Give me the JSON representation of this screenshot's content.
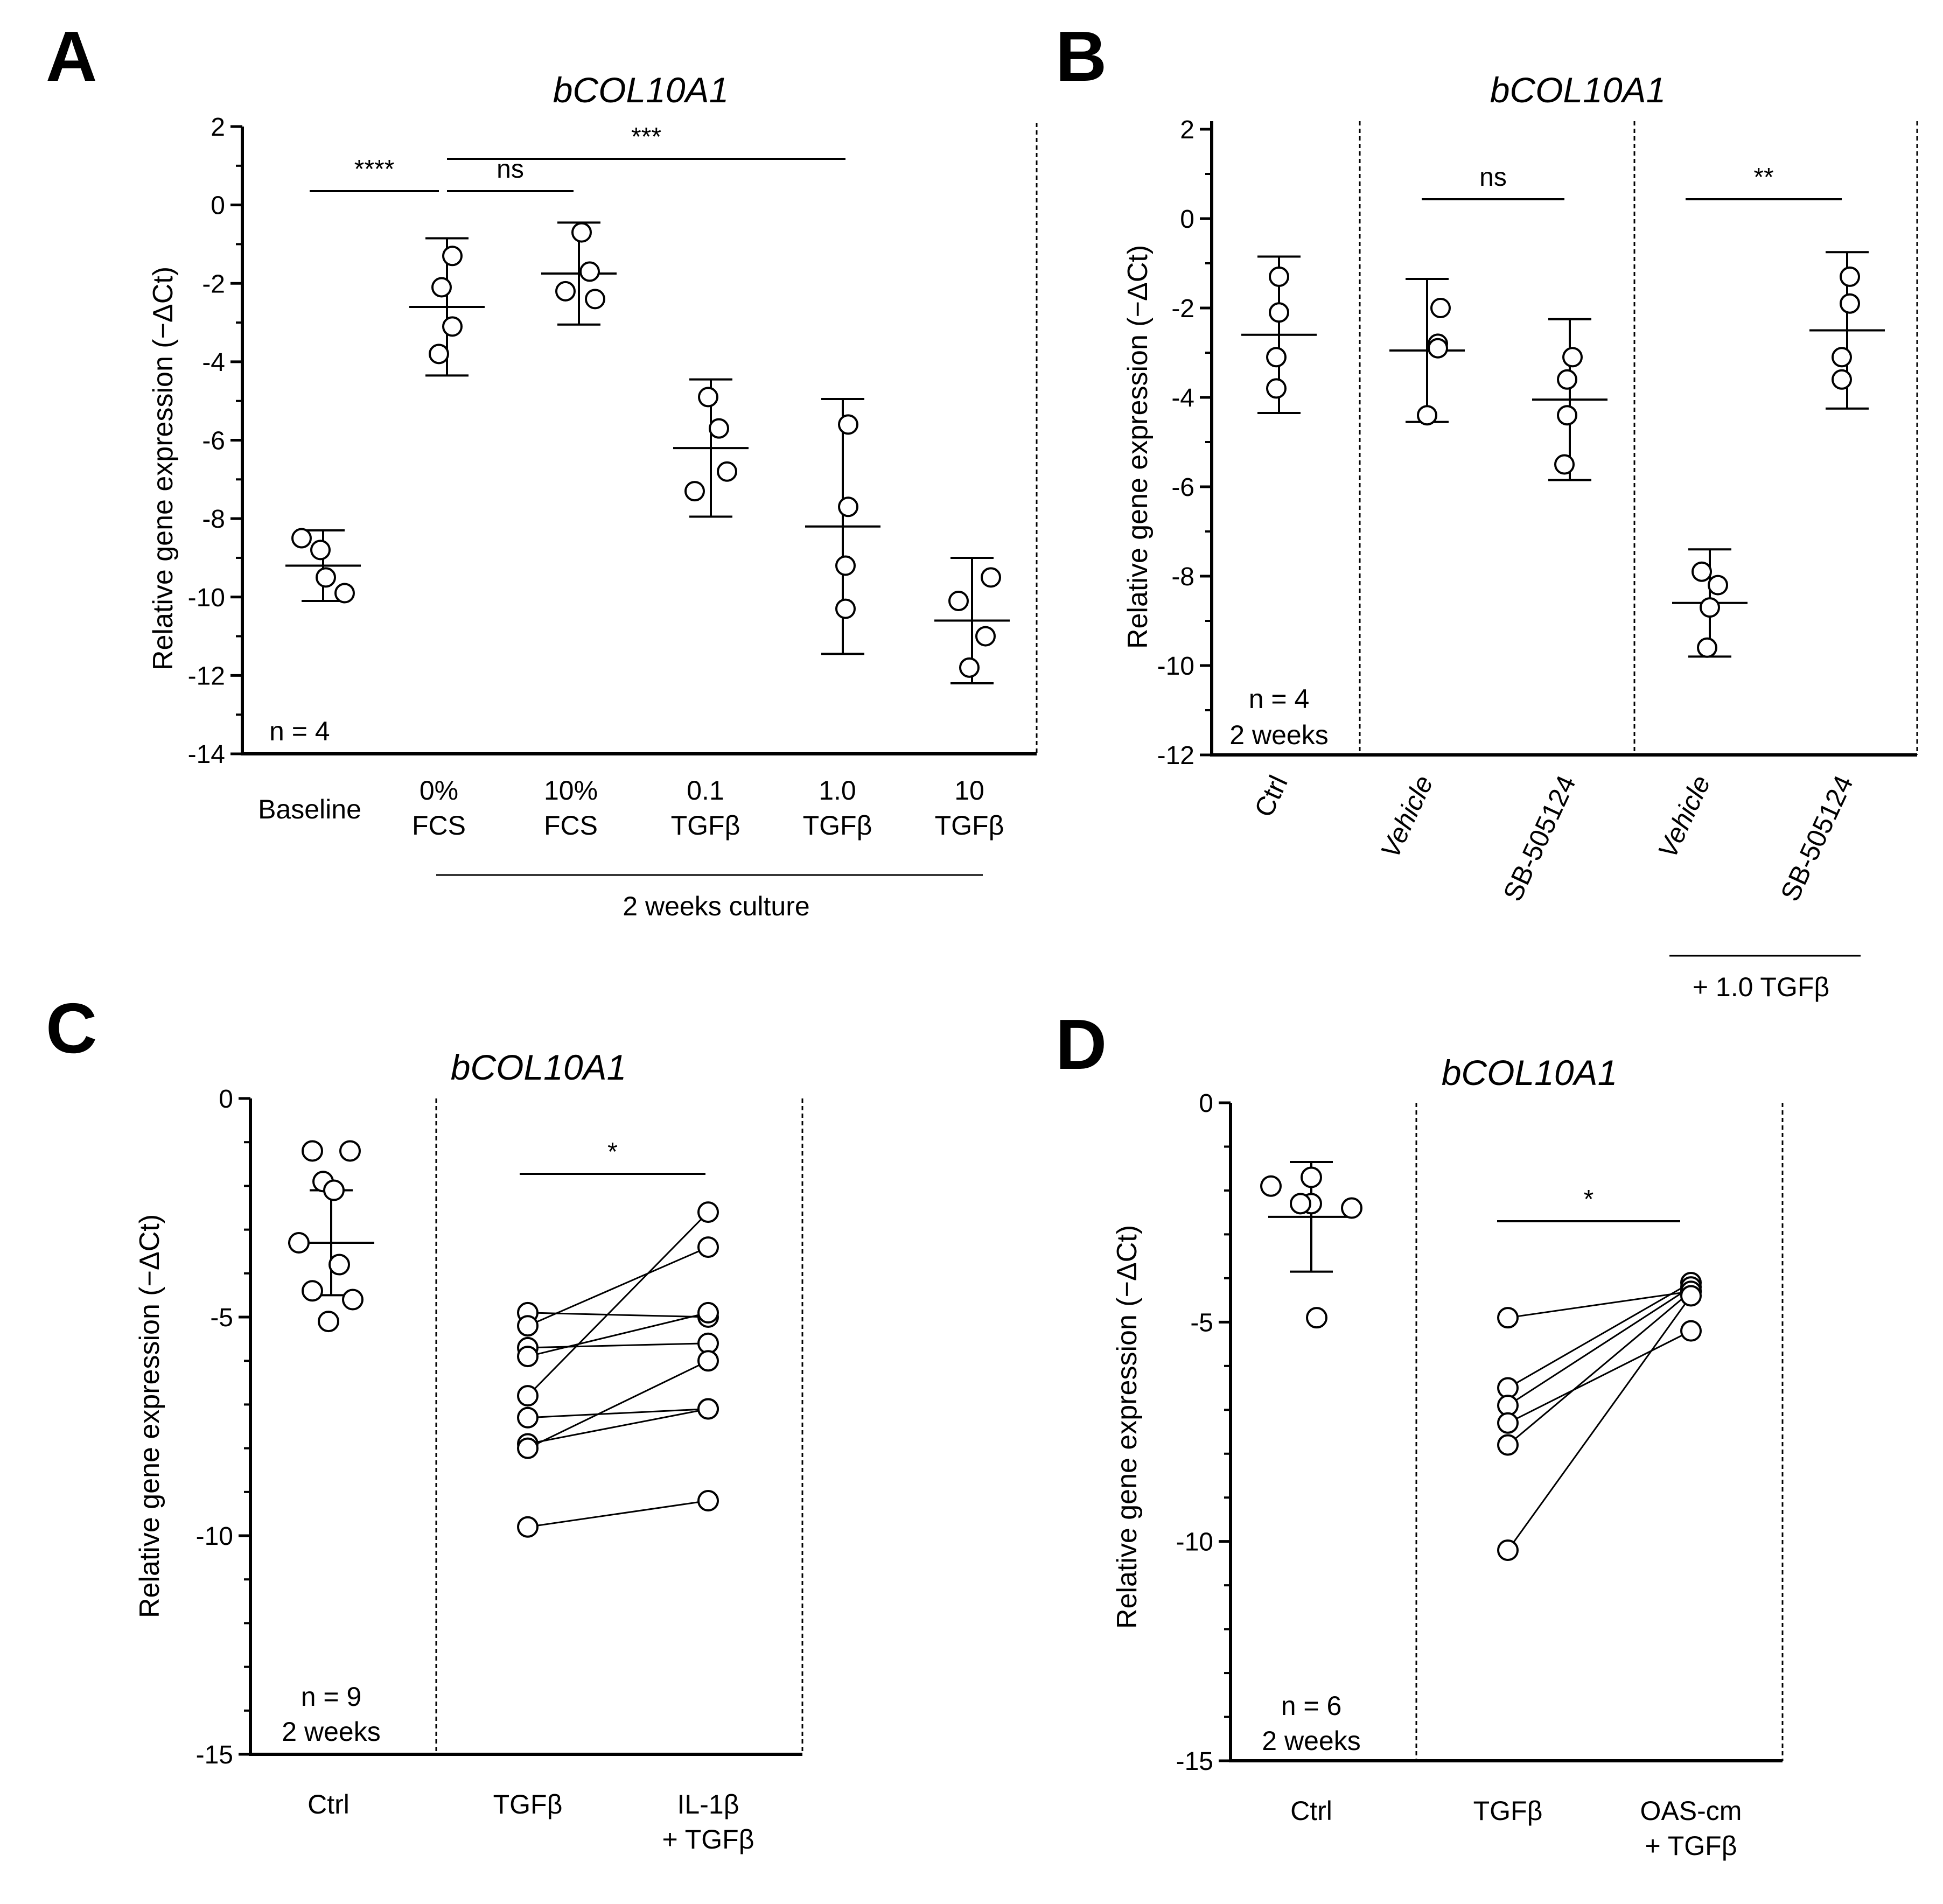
{
  "figure": {
    "panels": [
      {
        "id": "A",
        "letter": "A",
        "title": "bCOL10A1",
        "ylabel": "Relative gene expression (−ΔCt)",
        "yticks": [
          "2",
          "0",
          "-2",
          "-4",
          "-6",
          "-8",
          "-10",
          "-12",
          "-14"
        ],
        "notes": [
          "n = 4"
        ],
        "categories": [
          {
            "label": [
              "Baseline"
            ],
            "rotated": false
          },
          {
            "label": [
              "0%",
              "FCS"
            ],
            "rotated": false
          },
          {
            "label": [
              "10%",
              "FCS"
            ],
            "rotated": false
          },
          {
            "label": [
              "0.1",
              "TGFβ"
            ],
            "rotated": false
          },
          {
            "label": [
              "1.0",
              "TGFβ"
            ],
            "rotated": false
          },
          {
            "label": [
              "10",
              "TGFβ"
            ],
            "rotated": false
          }
        ],
        "group_label": "2 weeks culture",
        "significance": [
          {
            "from": 0,
            "to": 1,
            "text": "****"
          },
          {
            "from": 1,
            "to": 2,
            "text": "ns"
          },
          {
            "from": 1,
            "to": 4,
            "text": "***"
          }
        ]
      },
      {
        "id": "B",
        "letter": "B",
        "title": "bCOL10A1",
        "ylabel": "Relative gene expression (−ΔCt)",
        "yticks": [
          "2",
          "0",
          "-2",
          "-4",
          "-6",
          "-8",
          "-10",
          "-12"
        ],
        "notes": [
          "n = 4",
          "2 weeks"
        ],
        "categories": [
          {
            "label": [
              "Ctrl"
            ],
            "rotated": true
          },
          {
            "label": [
              "Vehicle"
            ],
            "rotated": true,
            "italic": true
          },
          {
            "label": [
              "SB-505124"
            ],
            "rotated": true
          },
          {
            "label": [
              "Vehicle"
            ],
            "rotated": true,
            "italic": true
          },
          {
            "label": [
              "SB-505124"
            ],
            "rotated": true
          }
        ],
        "group_label": "+ 1.0 TGFβ",
        "significance": [
          {
            "from": 1,
            "to": 2,
            "text": "ns"
          },
          {
            "from": 3,
            "to": 4,
            "text": "**"
          }
        ]
      },
      {
        "id": "C",
        "letter": "C",
        "title": "bCOL10A1",
        "ylabel": "Relative gene expression (−ΔCt)",
        "yticks": [
          "0",
          "-5",
          "-10",
          "-15"
        ],
        "notes": [
          "n = 9",
          "2 weeks"
        ],
        "categories": [
          {
            "label": [
              "Ctrl"
            ],
            "rotated": false
          },
          {
            "label": [
              "TGFβ"
            ],
            "rotated": false
          },
          {
            "label": [
              "IL-1β",
              "+ TGFβ"
            ],
            "rotated": false
          }
        ],
        "significance": [
          {
            "from": 1,
            "to": 2,
            "text": "*"
          }
        ]
      },
      {
        "id": "D",
        "letter": "D",
        "title": "bCOL10A1",
        "ylabel": "Relative gene expression (−ΔCt)",
        "yticks": [
          "0",
          "-5",
          "-10",
          "-15"
        ],
        "notes": [
          "n = 6",
          "2 weeks"
        ],
        "categories": [
          {
            "label": [
              "Ctrl"
            ],
            "rotated": false
          },
          {
            "label": [
              "TGFβ"
            ],
            "rotated": false
          },
          {
            "label": [
              "OAS-cm",
              "+ TGFβ"
            ],
            "rotated": false
          }
        ],
        "significance": [
          {
            "from": 1,
            "to": 2,
            "text": "*"
          }
        ]
      }
    ]
  },
  "chart_data": [
    {
      "panel": "A",
      "type": "scatter",
      "title": "bCOL10A1",
      "ylabel": "Relative gene expression (−ΔCt)",
      "ylim": [
        -14,
        2
      ],
      "categories": [
        "Baseline",
        "0% FCS",
        "10% FCS",
        "0.1 TGFβ",
        "1.0 TGFβ",
        "10 TGFβ"
      ],
      "points": [
        [
          -8.5,
          -8.8,
          -9.5,
          -9.9
        ],
        [
          -1.3,
          -2.1,
          -3.1,
          -3.8
        ],
        [
          -0.7,
          -1.7,
          -2.2,
          -2.4
        ],
        [
          -4.9,
          -5.7,
          -6.8,
          -7.3
        ],
        [
          -5.6,
          -7.7,
          -9.2,
          -10.3
        ],
        [
          -9.5,
          -10.1,
          -11.0,
          -11.8
        ]
      ],
      "means": [
        -9.2,
        -2.6,
        -1.75,
        -6.2,
        -8.2,
        -10.6
      ],
      "sd": [
        0.9,
        1.75,
        1.3,
        1.75,
        3.25,
        1.6
      ]
    },
    {
      "panel": "B",
      "type": "scatter",
      "title": "bCOL10A1",
      "ylabel": "Relative gene expression (−ΔCt)",
      "ylim": [
        -12,
        2
      ],
      "categories": [
        "Ctrl",
        "Vehicle",
        "SB-505124",
        "Vehicle + 1.0 TGFβ",
        "SB-505124 + 1.0 TGFβ"
      ],
      "points": [
        [
          -1.3,
          -2.1,
          -3.1,
          -3.8
        ],
        [
          -2.0,
          -2.8,
          -2.9,
          -4.4
        ],
        [
          -3.1,
          -3.6,
          -4.4,
          -5.5
        ],
        [
          -7.9,
          -8.2,
          -8.7,
          -9.6
        ],
        [
          -1.3,
          -1.9,
          -3.1,
          -3.6
        ]
      ],
      "means": [
        -2.6,
        -2.95,
        -4.05,
        -8.6,
        -2.5
      ],
      "sd": [
        1.75,
        1.6,
        1.8,
        1.2,
        1.75
      ]
    },
    {
      "panel": "C",
      "type": "scatter",
      "title": "bCOL10A1",
      "ylabel": "Relative gene expression (−ΔCt)",
      "ylim": [
        -15,
        0
      ],
      "categories": [
        "Ctrl",
        "TGFβ",
        "IL-1β + TGFβ"
      ],
      "ctrl_points": [
        -1.2,
        -1.2,
        -1.9,
        -2.1,
        -3.3,
        -3.8,
        -4.4,
        -4.6,
        -5.1
      ],
      "ctrl_mean": -3.3,
      "ctrl_sd": 1.2,
      "paired": [
        [
          -4.9,
          -5.0
        ],
        [
          -5.2,
          -3.4
        ],
        [
          -5.7,
          -5.6
        ],
        [
          -5.9,
          -4.9
        ],
        [
          -6.8,
          -2.6
        ],
        [
          -7.3,
          -7.1
        ],
        [
          -7.9,
          -7.1
        ],
        [
          -8.0,
          -6.0
        ],
        [
          -9.8,
          -9.2
        ]
      ]
    },
    {
      "panel": "D",
      "type": "scatter",
      "title": "bCOL10A1",
      "ylabel": "Relative gene expression (−ΔCt)",
      "ylim": [
        -15,
        0
      ],
      "categories": [
        "Ctrl",
        "TGFβ",
        "OAS-cm + TGFβ"
      ],
      "ctrl_points": [
        -1.7,
        -1.9,
        -2.3,
        -2.3,
        -2.4,
        -4.9
      ],
      "ctrl_mean": -2.6,
      "ctrl_sd": 1.25,
      "paired": [
        [
          -4.9,
          -4.3
        ],
        [
          -6.5,
          -4.1
        ],
        [
          -6.9,
          -4.2
        ],
        [
          -7.3,
          -5.2
        ],
        [
          -7.8,
          -4.3
        ],
        [
          -10.2,
          -4.4
        ]
      ]
    }
  ]
}
